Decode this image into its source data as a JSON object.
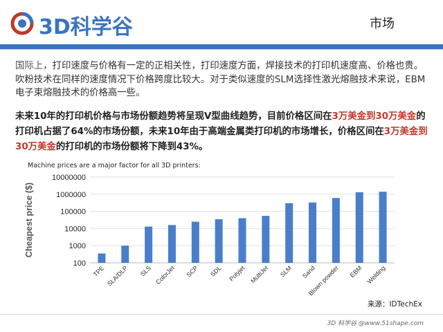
{
  "header": {
    "logo_text": "3D科学谷",
    "page_title": "市场"
  },
  "body": {
    "para1_lead": "国际上",
    "para1_rest": "，打印速度与价格有一定的正相关性，打印速度方面，焊接技术的打印机速度高、价格也贵。吹粉技术在同样的速度情况下价格跨度比较大。对于类似速度的SLM选择性激光熔融技术来说，EBM电子束熔融技术的价格高一些。",
    "para2_a": "未来10年的打印机价格与市场份额趋势将呈现V型曲线趋势，目前价格区间在",
    "para2_b": "3万美金到30万美金",
    "para2_c": "的打印机占据了64%的市场份额，未来10年由于高端金属类打印机的市场增长，价格区间在",
    "para2_d": "3万美金到30万美金",
    "para2_e": "的打印机的市场份额将下降到43%。"
  },
  "chart_title": "Machine prices are a major factor for all 3D printers:",
  "source": "来源：IDTechEx",
  "footer": "3D 科学谷 @www.51shape.com",
  "colors": {
    "accent": "#3a73c4",
    "bar": "#4a7ec9"
  },
  "chart_data": {
    "type": "bar",
    "title": "Machine prices are a major factor for all 3D printers:",
    "ylabel": "Cheapest price ($)",
    "xlabel": "",
    "yscale": "log",
    "ylim": [
      100,
      10000000
    ],
    "yticks": [
      "100",
      "1000",
      "10000",
      "100000",
      "1000000",
      "10000000"
    ],
    "categories": [
      "TPE",
      "SLA/DLP",
      "SLS",
      "ColorJet",
      "SCP",
      "SDL",
      "Polyjet",
      "MultiJet",
      "SLM",
      "Sand",
      "Blown powder",
      "EBM",
      "Welding"
    ],
    "values": [
      350,
      1000,
      13000,
      16000,
      25000,
      35000,
      40000,
      55000,
      300000,
      330000,
      600000,
      1300000,
      1400000
    ],
    "grid": true
  }
}
